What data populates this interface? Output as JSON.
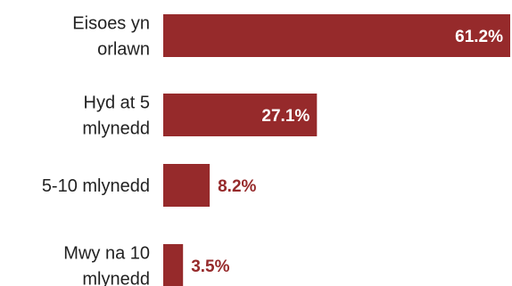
{
  "chart_data": {
    "type": "bar",
    "orientation": "horizontal",
    "categories": [
      [
        "Eisoes yn",
        "orlawn"
      ],
      [
        "Hyd at 5",
        "mlynedd"
      ],
      [
        "5-10 mlynedd"
      ],
      [
        "Mwy na 10",
        "mlynedd"
      ]
    ],
    "values": [
      61.2,
      27.1,
      8.2,
      3.5
    ],
    "value_labels": [
      "61.2%",
      "27.1%",
      "8.2%",
      "3.5%"
    ],
    "xlim": [
      0,
      61.2
    ],
    "grid": false,
    "legend": "none"
  },
  "colors": {
    "bar": "#962a2b",
    "label_inside": "#ffffff",
    "label_outside": "#962a2b",
    "category_text": "#222222"
  }
}
